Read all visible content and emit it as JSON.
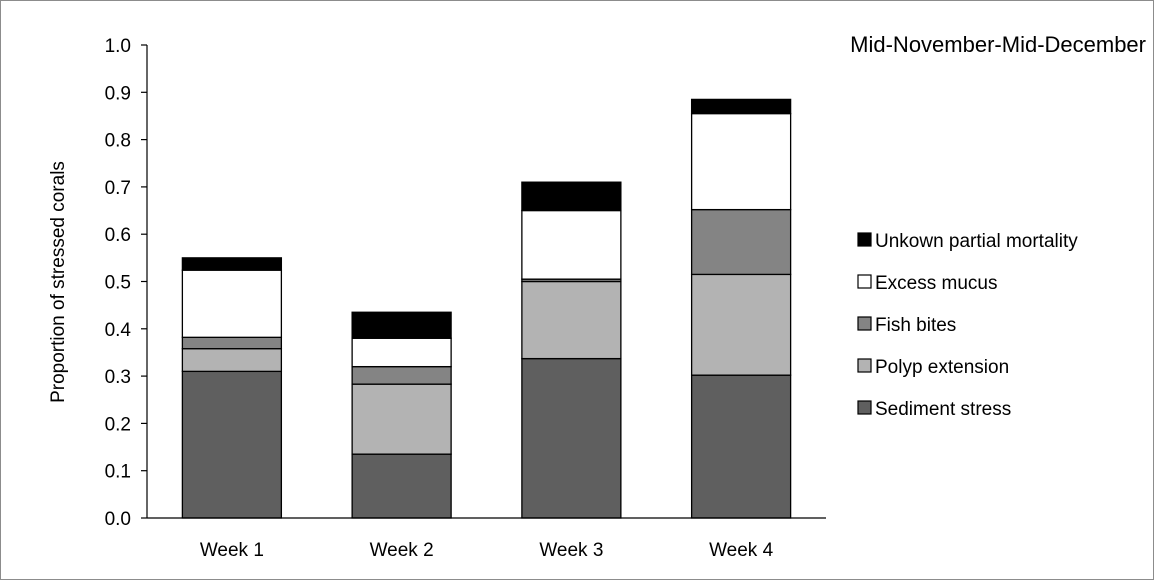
{
  "chart_data": {
    "type": "bar",
    "stacked": true,
    "title": "Mid-November-Mid-December",
    "xlabel": "",
    "ylabel": "Proportion of stressed corals",
    "ylim": [
      0,
      1.0
    ],
    "yticks": [
      "0.0",
      "0.1",
      "0.2",
      "0.3",
      "0.4",
      "0.5",
      "0.6",
      "0.7",
      "0.8",
      "0.9",
      "1.0"
    ],
    "grid": false,
    "legend_position": "right",
    "categories": [
      "Week 1",
      "Week 2",
      "Week 3",
      "Week 4"
    ],
    "series": [
      {
        "name": "Sediment stress",
        "color": "#5f5f5f",
        "values": [
          0.31,
          0.135,
          0.337,
          0.302
        ]
      },
      {
        "name": "Polyp extension",
        "color": "#b3b3b3",
        "values": [
          0.048,
          0.148,
          0.163,
          0.213
        ]
      },
      {
        "name": "Fish bites",
        "color": "#848484",
        "values": [
          0.024,
          0.037,
          0.005,
          0.137
        ]
      },
      {
        "name": "Excess mucus",
        "color": "#ffffff",
        "values": [
          0.142,
          0.06,
          0.145,
          0.203
        ]
      },
      {
        "name": "Unkown partial mortality",
        "color": "#000000",
        "values": [
          0.026,
          0.055,
          0.06,
          0.03
        ]
      }
    ]
  }
}
